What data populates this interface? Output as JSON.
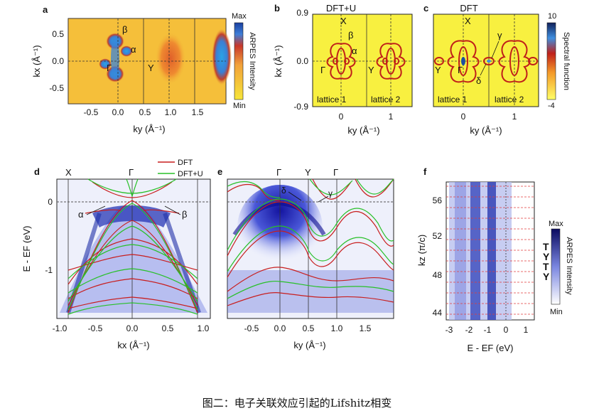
{
  "caption": "图二：电子关联效应引起的Lifshitz相变",
  "colors": {
    "arpes_min": "#f5e23a",
    "arpes_max": "#1a7fd0",
    "spectral_low": "#1a1a66",
    "spectral_high": "#ffff66",
    "dft_line": "#c81e1e",
    "dftu_line": "#28c028",
    "kz_line": "#e23c3c",
    "label_green": "#2ba84a",
    "label_purple": "#8a4fc8",
    "label_red": "#d42020"
  },
  "panel_a": {
    "letter": "a",
    "ylabel": "kx (Å⁻¹)",
    "xlabel": "ky (Å⁻¹)",
    "yticks": [
      "0.5",
      "0.0",
      "-0.5"
    ],
    "xticks": [
      "-0.5",
      "0.0",
      "0.5",
      "1.0",
      "1.5"
    ],
    "gamma_label": "Γ",
    "y_label": "Y",
    "alpha_label": "α",
    "beta_label": "β",
    "colorbar_max": "Max",
    "colorbar_min": "Min",
    "colorbar_label": "ARPES Intensity"
  },
  "panel_b": {
    "letter": "b",
    "title": "DFT+U",
    "ylabel": "kx (Å⁻¹)",
    "xlabel": "ky (Å⁻¹)",
    "yticks": [
      "0.9",
      "0.0",
      "-0.9"
    ],
    "xticks": [
      "0",
      "1"
    ],
    "x_label": "X",
    "gamma_label": "Γ",
    "y_label": "Y",
    "alpha_label": "α",
    "beta_label": "β",
    "lattice1": "lattice 1",
    "lattice2": "lattice 2"
  },
  "panel_c": {
    "letter": "c",
    "title": "DFT",
    "xlabel": "ky (Å⁻¹)",
    "xticks": [
      "0",
      "1"
    ],
    "x_label": "X",
    "gamma_label": "Γ",
    "y_label": "Y",
    "gamma_band": "γ",
    "delta_band": "δ",
    "lattice1": "lattice 1",
    "lattice2": "lattice 2",
    "colorbar_max": "10",
    "colorbar_min": "-4",
    "colorbar_label": "Spectral function"
  },
  "panel_d": {
    "letter": "d",
    "ylabel": "E - EF (eV)",
    "xlabel": "kx (Å⁻¹)",
    "yticks": [
      "0",
      "-1"
    ],
    "xticks": [
      "-1.0",
      "-0.5",
      "0.0",
      "0.5",
      "1.0"
    ],
    "x_point": "X",
    "gamma_point": "Γ",
    "alpha_label": "α",
    "beta_label": "β",
    "legend_dft": "DFT",
    "legend_dftu": "DFT+U"
  },
  "panel_e": {
    "letter": "e",
    "xlabel": "ky (Å⁻¹)",
    "xticks": [
      "-0.5",
      "0.0",
      "0.5",
      "1.0",
      "1.5"
    ],
    "gamma1": "Γ",
    "y_point": "Y",
    "gamma2": "Γ",
    "delta_label": "δ",
    "gamma_band": "γ"
  },
  "panel_f": {
    "letter": "f",
    "ylabel": "kz (π/c)",
    "xlabel": "E - EF (eV)",
    "yticks": [
      "56",
      "52",
      "48",
      "44"
    ],
    "xticks": [
      "-3",
      "-2",
      "-1",
      "0",
      "1"
    ],
    "hs_labels": [
      "T",
      "Y",
      "T",
      "Y"
    ],
    "colorbar_max": "Max",
    "colorbar_min": "Min",
    "colorbar_label": "ARPES Intensity"
  }
}
